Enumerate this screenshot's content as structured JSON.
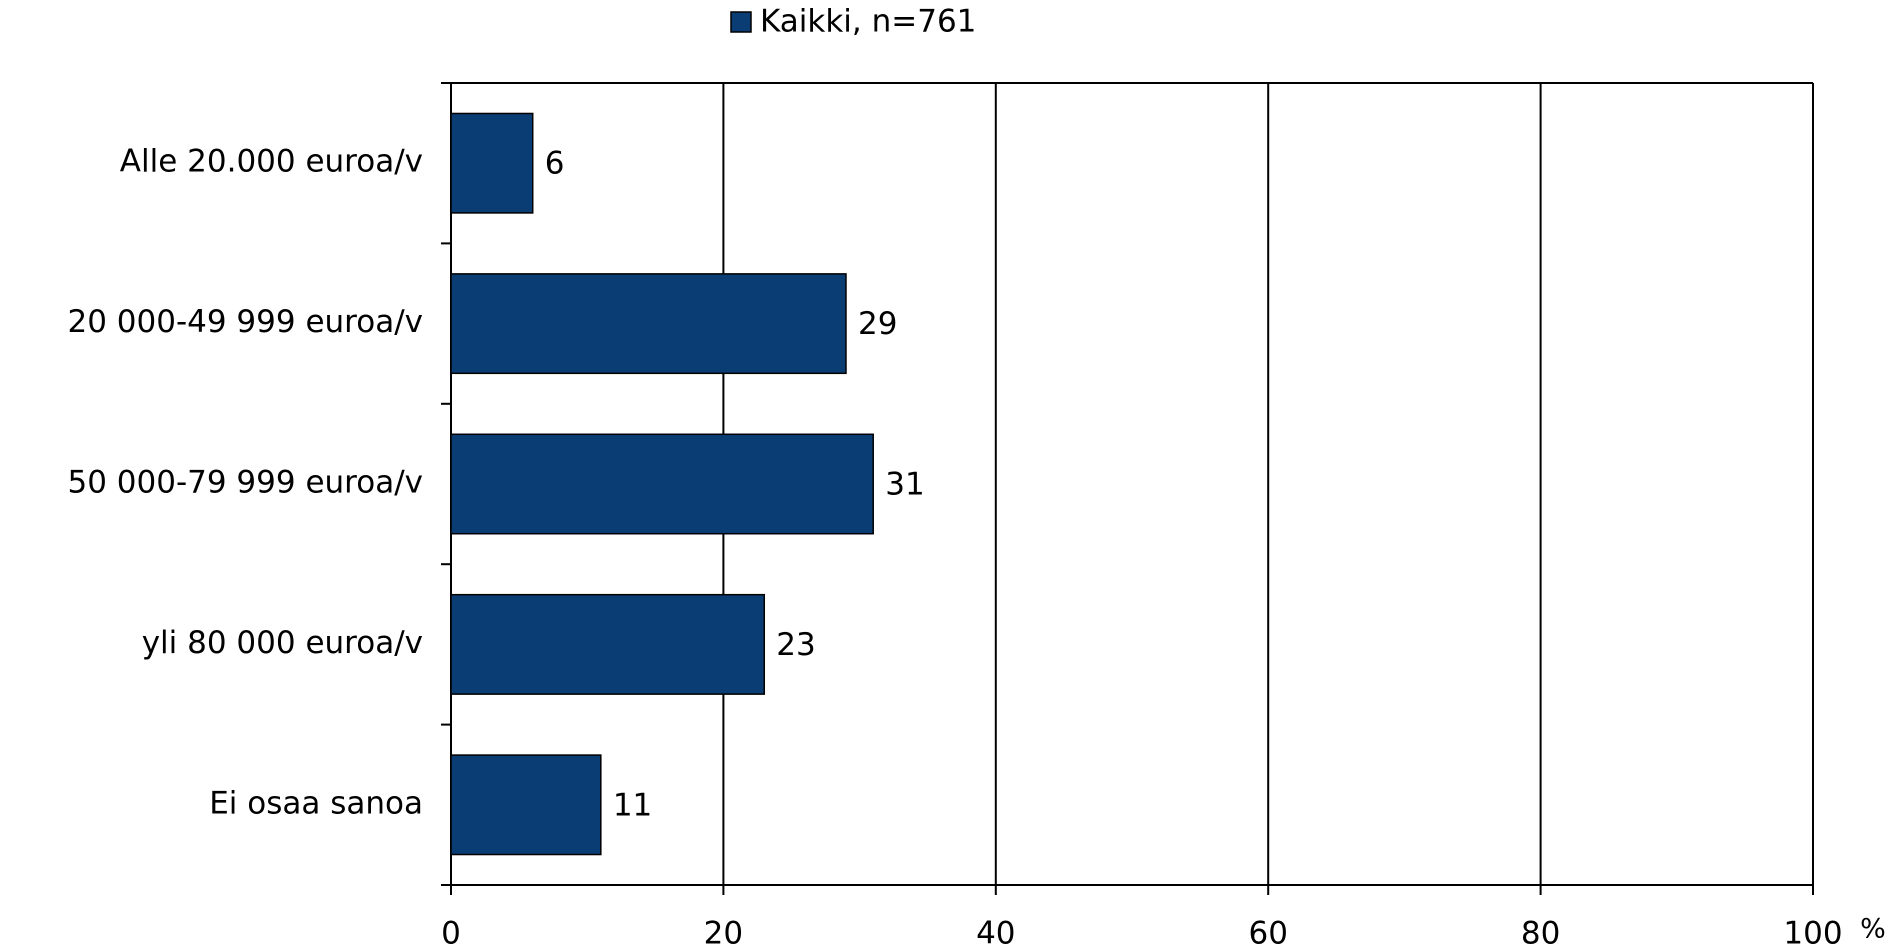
{
  "chart_data": {
    "type": "bar",
    "orientation": "horizontal",
    "categories": [
      "Alle 20.000 euroa/v",
      "20 000-49 999 euroa/v",
      "50 000-79 999 euroa/v",
      "yli 80 000 euroa/v",
      "Ei osaa sanoa"
    ],
    "series": [
      {
        "name": "Kaikki, n=761",
        "color": "#0a3d74",
        "values": [
          6,
          29,
          31,
          23,
          11
        ]
      }
    ],
    "x_label": "%",
    "xlim": [
      0,
      100
    ],
    "xticks": [
      0,
      20,
      40,
      60,
      80,
      100
    ],
    "grid": true,
    "legend": "top"
  }
}
